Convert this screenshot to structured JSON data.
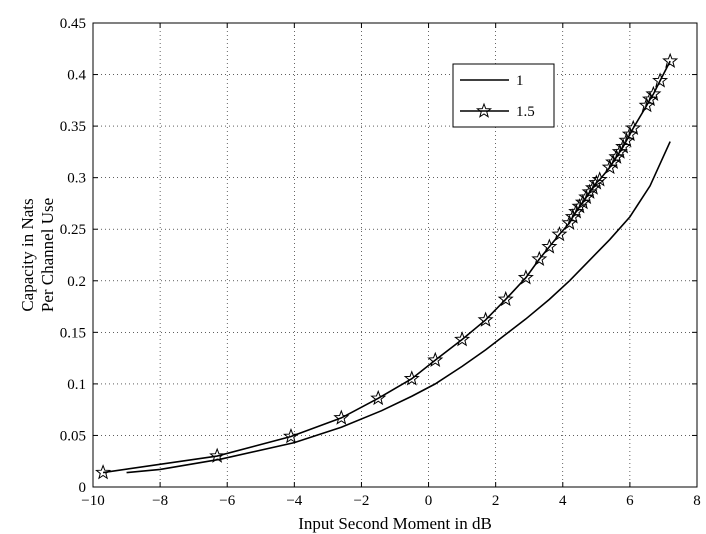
{
  "chart_data": {
    "type": "line",
    "title": "",
    "xlabel": "Input Second Moment in dB",
    "ylabel": [
      "Capacity in Nats",
      "Per Channel Use"
    ],
    "xlim": [
      -10,
      8
    ],
    "ylim": [
      0,
      0.45
    ],
    "xticks": [
      -10,
      -8,
      -6,
      -4,
      -2,
      0,
      2,
      4,
      6,
      8
    ],
    "yticks": [
      0,
      0.05,
      0.1,
      0.15,
      0.2,
      0.25,
      0.3,
      0.35,
      0.4,
      0.45
    ],
    "xtick_labels": [
      "−10",
      "−8",
      "−6",
      "−4",
      "−2",
      "0",
      "2",
      "4",
      "6",
      "8"
    ],
    "ytick_labels": [
      "0",
      "0.05",
      "0.1",
      "0.15",
      "0.2",
      "0.25",
      "0.3",
      "0.35",
      "0.4",
      "0.45"
    ],
    "grid": true,
    "legend_position": "top-right",
    "series": [
      {
        "name": "1",
        "marker": "none",
        "color": "#000000",
        "x": [
          -9.0,
          -8.0,
          -6.2,
          -4.0,
          -2.6,
          -1.4,
          -0.5,
          0.2,
          1.0,
          1.7,
          2.3,
          2.9,
          3.6,
          4.2,
          4.8,
          5.4,
          6.0,
          6.6,
          7.2
        ],
        "y": [
          0.014,
          0.017,
          0.027,
          0.043,
          0.058,
          0.074,
          0.088,
          0.1,
          0.117,
          0.133,
          0.148,
          0.163,
          0.182,
          0.2,
          0.22,
          0.24,
          0.262,
          0.292,
          0.335
        ]
      },
      {
        "name": "1.5",
        "marker": "star",
        "color": "#000000",
        "x": [
          -9.7,
          -6.3,
          -4.1,
          -2.6,
          -1.5,
          -0.5,
          0.2,
          1.0,
          1.7,
          2.3,
          2.9,
          3.3,
          3.6,
          3.9,
          4.2,
          4.3,
          4.4,
          4.5,
          4.6,
          4.7,
          4.8,
          4.9,
          5.0,
          5.1,
          5.4,
          5.5,
          5.6,
          5.7,
          5.8,
          5.9,
          6.0,
          6.1,
          6.5,
          6.6,
          6.7,
          6.9,
          7.2
        ],
        "y": [
          0.014,
          0.03,
          0.049,
          0.067,
          0.086,
          0.105,
          0.123,
          0.143,
          0.162,
          0.182,
          0.203,
          0.221,
          0.233,
          0.245,
          0.256,
          0.262,
          0.267,
          0.272,
          0.276,
          0.281,
          0.286,
          0.29,
          0.295,
          0.298,
          0.31,
          0.315,
          0.32,
          0.325,
          0.33,
          0.336,
          0.342,
          0.348,
          0.37,
          0.376,
          0.381,
          0.394,
          0.413
        ]
      }
    ]
  }
}
